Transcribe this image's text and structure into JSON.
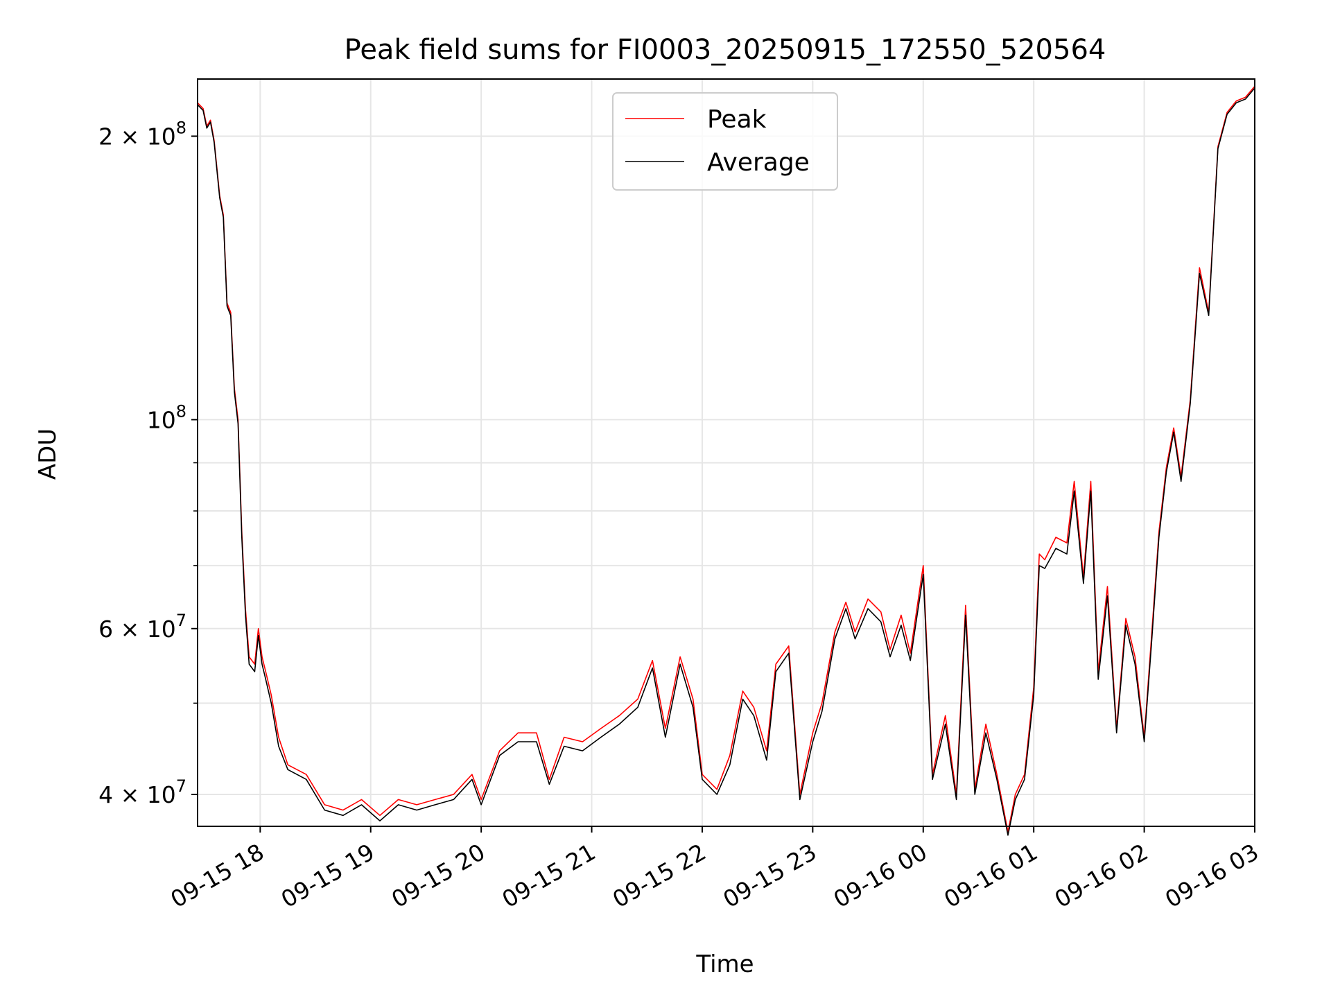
{
  "chart_data": {
    "type": "line",
    "title": "Peak field sums for FI0003_20250915_172550_520564",
    "xlabel": "Time",
    "ylabel": "ADU",
    "yscale": "log",
    "xlim": [
      "2025-09-15 17:26",
      "2025-09-16 03:00"
    ],
    "ylim": [
      37000000,
      230000000
    ],
    "x_ticks": [
      {
        "value": "2025-09-15 18:00",
        "label": "09-15 18"
      },
      {
        "value": "2025-09-15 19:00",
        "label": "09-15 19"
      },
      {
        "value": "2025-09-15 20:00",
        "label": "09-15 20"
      },
      {
        "value": "2025-09-15 21:00",
        "label": "09-15 21"
      },
      {
        "value": "2025-09-15 22:00",
        "label": "09-15 22"
      },
      {
        "value": "2025-09-15 23:00",
        "label": "09-15 23"
      },
      {
        "value": "2025-09-16 00:00",
        "label": "09-16 00"
      },
      {
        "value": "2025-09-16 01:00",
        "label": "09-16 01"
      },
      {
        "value": "2025-09-16 02:00",
        "label": "09-16 02"
      },
      {
        "value": "2025-09-16 03:00",
        "label": "09-16 03"
      }
    ],
    "y_major_ticks": [
      {
        "value": 40000000,
        "base": "4 × 10",
        "exp": "7"
      },
      {
        "value": 60000000,
        "base": "6 × 10",
        "exp": "7"
      },
      {
        "value": 100000000,
        "base": "10",
        "exp": "8"
      },
      {
        "value": 200000000,
        "base": "2 × 10",
        "exp": "8"
      }
    ],
    "y_minor_ticks": [
      50000000,
      70000000,
      80000000,
      90000000
    ],
    "grid": true,
    "legend_position": "upper center",
    "series": [
      {
        "name": "Peak",
        "color": "#ff0000",
        "x": [
          "2025-09-15 17:26",
          "2025-09-15 17:29",
          "2025-09-15 17:31",
          "2025-09-15 17:33",
          "2025-09-15 17:35",
          "2025-09-15 17:38",
          "2025-09-15 17:40",
          "2025-09-15 17:42",
          "2025-09-15 17:44",
          "2025-09-15 17:46",
          "2025-09-15 17:48",
          "2025-09-15 17:50",
          "2025-09-15 17:52",
          "2025-09-15 17:54",
          "2025-09-15 17:57",
          "2025-09-15 17:59",
          "2025-09-15 18:01",
          "2025-09-15 18:03",
          "2025-09-15 18:06",
          "2025-09-15 18:10",
          "2025-09-15 18:15",
          "2025-09-15 18:25",
          "2025-09-15 18:35",
          "2025-09-15 18:45",
          "2025-09-15 18:55",
          "2025-09-15 19:05",
          "2025-09-15 19:15",
          "2025-09-15 19:25",
          "2025-09-15 19:35",
          "2025-09-15 19:45",
          "2025-09-15 19:55",
          "2025-09-15 20:00",
          "2025-09-15 20:10",
          "2025-09-15 20:20",
          "2025-09-15 20:30",
          "2025-09-15 20:37",
          "2025-09-15 20:45",
          "2025-09-15 20:55",
          "2025-09-15 21:05",
          "2025-09-15 21:15",
          "2025-09-15 21:25",
          "2025-09-15 21:33",
          "2025-09-15 21:40",
          "2025-09-15 21:48",
          "2025-09-15 21:55",
          "2025-09-15 22:00",
          "2025-09-15 22:08",
          "2025-09-15 22:15",
          "2025-09-15 22:22",
          "2025-09-15 22:28",
          "2025-09-15 22:35",
          "2025-09-15 22:40",
          "2025-09-15 22:47",
          "2025-09-15 22:53",
          "2025-09-15 23:00",
          "2025-09-15 23:05",
          "2025-09-15 23:12",
          "2025-09-15 23:18",
          "2025-09-15 23:23",
          "2025-09-15 23:30",
          "2025-09-15 23:37",
          "2025-09-15 23:42",
          "2025-09-15 23:48",
          "2025-09-15 23:53",
          "2025-09-16 00:00",
          "2025-09-16 00:05",
          "2025-09-16 00:12",
          "2025-09-16 00:18",
          "2025-09-16 00:23",
          "2025-09-16 00:28",
          "2025-09-16 00:34",
          "2025-09-16 00:40",
          "2025-09-16 00:46",
          "2025-09-16 00:50",
          "2025-09-16 00:55",
          "2025-09-16 01:00",
          "2025-09-16 01:03",
          "2025-09-16 01:06",
          "2025-09-16 01:12",
          "2025-09-16 01:18",
          "2025-09-16 01:22",
          "2025-09-16 01:27",
          "2025-09-16 01:31",
          "2025-09-16 01:35",
          "2025-09-16 01:40",
          "2025-09-16 01:45",
          "2025-09-16 01:50",
          "2025-09-16 01:55",
          "2025-09-16 02:00",
          "2025-09-16 02:04",
          "2025-09-16 02:08",
          "2025-09-16 02:12",
          "2025-09-16 02:16",
          "2025-09-16 02:20",
          "2025-09-16 02:25",
          "2025-09-16 02:30",
          "2025-09-16 02:35",
          "2025-09-16 02:40",
          "2025-09-16 02:45",
          "2025-09-16 02:50",
          "2025-09-16 02:55",
          "2025-09-16 03:00"
        ],
        "y": [
          217000000,
          214000000,
          205000000,
          208000000,
          198000000,
          173000000,
          165000000,
          133000000,
          130000000,
          108000000,
          100000000,
          76000000,
          63000000,
          56000000,
          55000000,
          60000000,
          56000000,
          54000000,
          51000000,
          46000000,
          43000000,
          42000000,
          39000000,
          38500000,
          39500000,
          38000000,
          39500000,
          39000000,
          39500000,
          40000000,
          42000000,
          39500000,
          44500000,
          46500000,
          46500000,
          41500000,
          46000000,
          45500000,
          47000000,
          48500000,
          50500000,
          55500000,
          47000000,
          56000000,
          50500000,
          42000000,
          40500000,
          44000000,
          51500000,
          49500000,
          44500000,
          55000000,
          57500000,
          40000000,
          46500000,
          50000000,
          59500000,
          64000000,
          59500000,
          64500000,
          62500000,
          57000000,
          62000000,
          56500000,
          70000000,
          42000000,
          48500000,
          40000000,
          63500000,
          40500000,
          47500000,
          42000000,
          36500000,
          40000000,
          42000000,
          52000000,
          72000000,
          71000000,
          75000000,
          74000000,
          86000000,
          68000000,
          86000000,
          54000000,
          66500000,
          47000000,
          61500000,
          56000000,
          46000000,
          59000000,
          76000000,
          89000000,
          98000000,
          87000000,
          105000000,
          145000000,
          130000000,
          195000000,
          212000000,
          218000000,
          220000000,
          226000000
        ]
      },
      {
        "name": "Average",
        "color": "#000000",
        "x": [
          "2025-09-15 17:26",
          "2025-09-15 17:29",
          "2025-09-15 17:31",
          "2025-09-15 17:33",
          "2025-09-15 17:35",
          "2025-09-15 17:38",
          "2025-09-15 17:40",
          "2025-09-15 17:42",
          "2025-09-15 17:44",
          "2025-09-15 17:46",
          "2025-09-15 17:48",
          "2025-09-15 17:50",
          "2025-09-15 17:52",
          "2025-09-15 17:54",
          "2025-09-15 17:57",
          "2025-09-15 17:59",
          "2025-09-15 18:01",
          "2025-09-15 18:03",
          "2025-09-15 18:06",
          "2025-09-15 18:10",
          "2025-09-15 18:15",
          "2025-09-15 18:25",
          "2025-09-15 18:35",
          "2025-09-15 18:45",
          "2025-09-15 18:55",
          "2025-09-15 19:05",
          "2025-09-15 19:15",
          "2025-09-15 19:25",
          "2025-09-15 19:35",
          "2025-09-15 19:45",
          "2025-09-15 19:55",
          "2025-09-15 20:00",
          "2025-09-15 20:10",
          "2025-09-15 20:20",
          "2025-09-15 20:30",
          "2025-09-15 20:37",
          "2025-09-15 20:45",
          "2025-09-15 20:55",
          "2025-09-15 21:05",
          "2025-09-15 21:15",
          "2025-09-15 21:25",
          "2025-09-15 21:33",
          "2025-09-15 21:40",
          "2025-09-15 21:48",
          "2025-09-15 21:55",
          "2025-09-15 22:00",
          "2025-09-15 22:08",
          "2025-09-15 22:15",
          "2025-09-15 22:22",
          "2025-09-15 22:28",
          "2025-09-15 22:35",
          "2025-09-15 22:40",
          "2025-09-15 22:47",
          "2025-09-15 22:53",
          "2025-09-15 23:00",
          "2025-09-15 23:05",
          "2025-09-15 23:12",
          "2025-09-15 23:18",
          "2025-09-15 23:23",
          "2025-09-15 23:30",
          "2025-09-15 23:37",
          "2025-09-15 23:42",
          "2025-09-15 23:48",
          "2025-09-15 23:53",
          "2025-09-16 00:00",
          "2025-09-16 00:05",
          "2025-09-16 00:12",
          "2025-09-16 00:18",
          "2025-09-16 00:23",
          "2025-09-16 00:28",
          "2025-09-16 00:34",
          "2025-09-16 00:40",
          "2025-09-16 00:46",
          "2025-09-16 00:50",
          "2025-09-16 00:55",
          "2025-09-16 01:00",
          "2025-09-16 01:03",
          "2025-09-16 01:06",
          "2025-09-16 01:12",
          "2025-09-16 01:18",
          "2025-09-16 01:22",
          "2025-09-16 01:27",
          "2025-09-16 01:31",
          "2025-09-16 01:35",
          "2025-09-16 01:40",
          "2025-09-16 01:45",
          "2025-09-16 01:50",
          "2025-09-16 01:55",
          "2025-09-16 02:00",
          "2025-09-16 02:04",
          "2025-09-16 02:08",
          "2025-09-16 02:12",
          "2025-09-16 02:16",
          "2025-09-16 02:20",
          "2025-09-16 02:25",
          "2025-09-16 02:30",
          "2025-09-16 02:35",
          "2025-09-16 02:40",
          "2025-09-16 02:45",
          "2025-09-16 02:50",
          "2025-09-16 02:55",
          "2025-09-16 03:00"
        ],
        "y": [
          216000000,
          213000000,
          204000000,
          207000000,
          197000000,
          172000000,
          164000000,
          132000000,
          129000000,
          107000000,
          99000000,
          75000000,
          62000000,
          55000000,
          54000000,
          59000000,
          55000000,
          53000000,
          50000000,
          45000000,
          42500000,
          41500000,
          38500000,
          38000000,
          39000000,
          37500000,
          39000000,
          38500000,
          39000000,
          39500000,
          41500000,
          39000000,
          44000000,
          45500000,
          45500000,
          41000000,
          45000000,
          44500000,
          46000000,
          47500000,
          49500000,
          54500000,
          46000000,
          55000000,
          49500000,
          41500000,
          40000000,
          43000000,
          50500000,
          48500000,
          43500000,
          54000000,
          56500000,
          39500000,
          45500000,
          49000000,
          58500000,
          63000000,
          58500000,
          63000000,
          61000000,
          56000000,
          60500000,
          55500000,
          68500000,
          41500000,
          47500000,
          39500000,
          62000000,
          40000000,
          46500000,
          41500000,
          36200000,
          39500000,
          41500000,
          51000000,
          70000000,
          69500000,
          73000000,
          72000000,
          84000000,
          67000000,
          84000000,
          53000000,
          65000000,
          46500000,
          60500000,
          55000000,
          45500000,
          58000000,
          75000000,
          88000000,
          97000000,
          86000000,
          104000000,
          143000000,
          129000000,
          194000000,
          211000000,
          217000000,
          219000000,
          225000000
        ]
      }
    ]
  }
}
